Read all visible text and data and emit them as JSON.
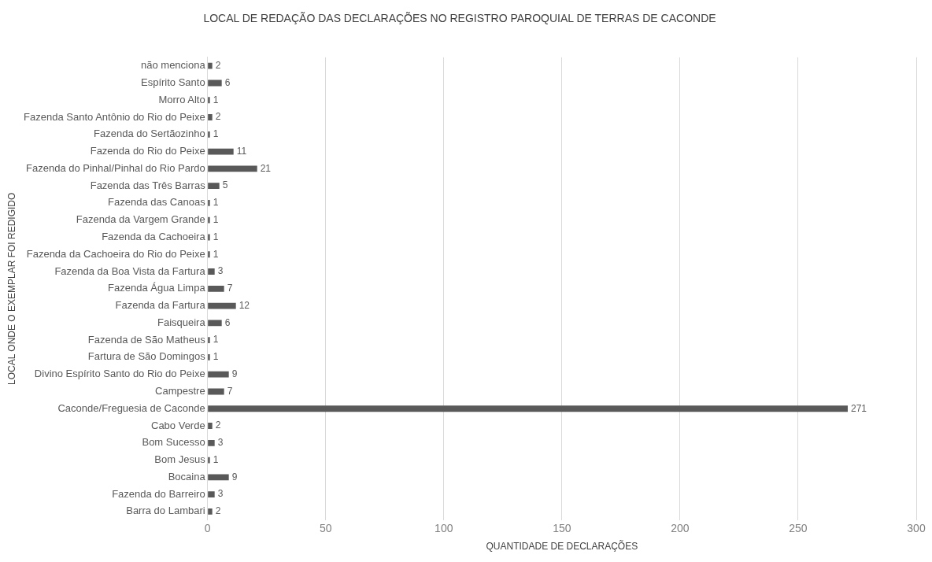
{
  "chart_data": {
    "type": "bar",
    "orientation": "horizontal",
    "title": "LOCAL DE REDAÇÃO DAS DECLARAÇÕES NO REGISTRO PAROQUIAL DE TERRAS DE CACONDE",
    "xlabel": "QUANTIDADE DE DECLARAÇÕES",
    "ylabel": "LOCAL ONDE O EXEMPLAR FOI REDIGIDO",
    "categories": [
      "não menciona",
      "Espírito Santo",
      "Morro Alto",
      "Fazenda Santo Antônio do Rio do Peixe",
      "Fazenda do Sertãozinho",
      "Fazenda do Rio do Peixe",
      "Fazenda do Pinhal/Pinhal do Rio Pardo",
      "Fazenda das Três Barras",
      "Fazenda das Canoas",
      "Fazenda da Vargem Grande",
      "Fazenda da Cachoeira",
      "Fazenda da Cachoeira do Rio do Peixe",
      "Fazenda da Boa Vista da Fartura",
      "Fazenda Água Limpa",
      "Fazenda da Fartura",
      "Faisqueira",
      "Fazenda de São Matheus",
      "Fartura de São Domingos",
      "Divino Espírito Santo do Rio do Peixe",
      "Campestre",
      "Caconde/Freguesia de Caconde",
      "Cabo Verde",
      "Bom Sucesso",
      "Bom Jesus",
      "Bocaina",
      "Fazenda do Barreiro",
      "Barra do Lambari"
    ],
    "values": [
      2,
      6,
      1,
      2,
      1,
      11,
      21,
      5,
      1,
      1,
      1,
      1,
      3,
      7,
      12,
      6,
      1,
      1,
      9,
      7,
      271,
      2,
      3,
      1,
      9,
      3,
      2
    ],
    "color": "#595959",
    "xlim": [
      0,
      300
    ],
    "xticks": [
      0,
      50,
      100,
      150,
      200,
      250,
      300
    ],
    "grid": "x",
    "data_labels": true
  }
}
